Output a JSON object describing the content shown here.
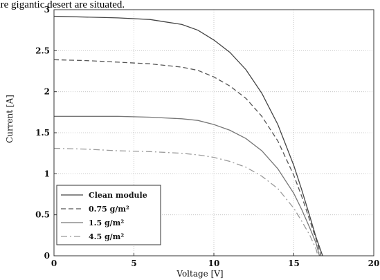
{
  "top_text": "are gigantic desert are situated.",
  "chart_data": {
    "type": "line",
    "xlabel": "Voltage [V]",
    "ylabel": "Current [A]",
    "xlim": [
      0,
      20
    ],
    "ylim": [
      0,
      3
    ],
    "xticks": [
      "0",
      "5",
      "10",
      "15",
      "20"
    ],
    "yticks": [
      "0",
      "0.5",
      "1",
      "1.5",
      "2",
      "2.5",
      "3"
    ],
    "grid": true,
    "legend_position": "bottom-left",
    "series": [
      {
        "name": "Clean module",
        "color": "#444444",
        "style": "solid",
        "x": [
          0,
          2,
          4,
          6,
          8,
          9,
          10,
          11,
          12,
          13,
          14,
          15,
          15.5,
          16,
          16.4,
          16.8
        ],
        "y": [
          2.92,
          2.91,
          2.9,
          2.88,
          2.82,
          2.75,
          2.63,
          2.48,
          2.27,
          1.98,
          1.6,
          1.1,
          0.8,
          0.48,
          0.22,
          0.0
        ]
      },
      {
        "name": "0.75 g/m²",
        "color": "#555555",
        "style": "dashed",
        "x": [
          0,
          2,
          4,
          6,
          8,
          9,
          10,
          11,
          12,
          13,
          14,
          15,
          15.5,
          16,
          16.4,
          16.7
        ],
        "y": [
          2.39,
          2.38,
          2.36,
          2.34,
          2.3,
          2.26,
          2.18,
          2.07,
          1.92,
          1.7,
          1.4,
          0.98,
          0.72,
          0.43,
          0.2,
          0.0
        ]
      },
      {
        "name": "1.5 g/m²",
        "color": "#777777",
        "style": "solid",
        "x": [
          0,
          2,
          4,
          6,
          8,
          9,
          10,
          11,
          12,
          13,
          14,
          15,
          15.5,
          16,
          16.4,
          16.6
        ],
        "y": [
          1.7,
          1.7,
          1.7,
          1.69,
          1.67,
          1.65,
          1.6,
          1.53,
          1.43,
          1.28,
          1.06,
          0.76,
          0.56,
          0.34,
          0.15,
          0.0
        ]
      },
      {
        "name": "4.5 g/m²",
        "color": "#9a9a9a",
        "style": "dashdot",
        "x": [
          0,
          2,
          4,
          6,
          8,
          9,
          10,
          11,
          12,
          13,
          14,
          15,
          15.5,
          16,
          16.4,
          16.5
        ],
        "y": [
          1.31,
          1.3,
          1.28,
          1.27,
          1.25,
          1.23,
          1.2,
          1.15,
          1.08,
          0.97,
          0.82,
          0.58,
          0.42,
          0.25,
          0.08,
          0.0
        ]
      }
    ]
  }
}
